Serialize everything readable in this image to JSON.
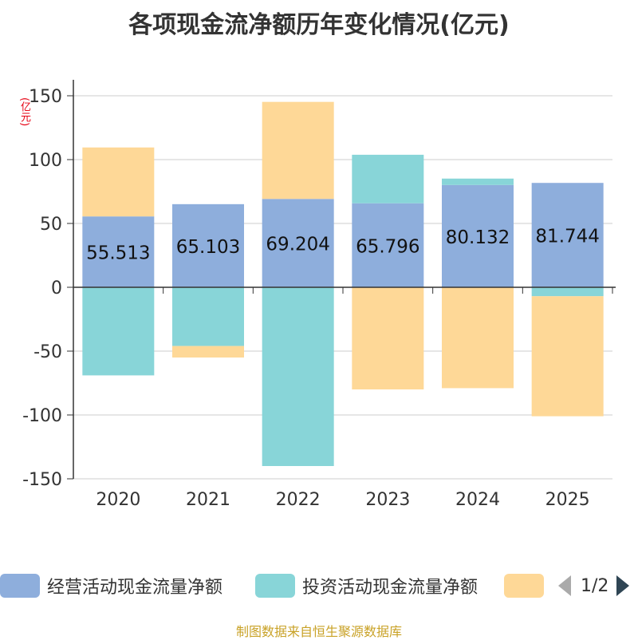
{
  "chart_data": {
    "type": "bar",
    "title": "各项现金流净额历年变化情况(亿元)",
    "unit": "(亿元)",
    "categories": [
      "2020",
      "2021",
      "2022",
      "2023",
      "2024",
      "2025"
    ],
    "ylim": [
      -150,
      150
    ],
    "yticks": [
      150,
      100,
      50,
      0,
      -50,
      -100,
      -150
    ],
    "grid": true,
    "legend_position": "bottom",
    "series": [
      {
        "name": "经营活动现金流量净额",
        "color": "#8eaedc",
        "values": [
          55.513,
          65.103,
          69.204,
          65.796,
          80.132,
          81.744
        ]
      },
      {
        "name": "投资活动现金流量净额",
        "color": "#88d5d8",
        "values": [
          -69,
          -46,
          -140,
          38,
          5,
          -7
        ]
      },
      {
        "name": "",
        "color": "#fed897",
        "values": [
          54,
          -9,
          76,
          -80,
          -79,
          -94
        ]
      }
    ],
    "data_labels": [
      "55.513",
      "65.103",
      "69.204",
      "65.796",
      "80.132",
      "81.744"
    ]
  },
  "legend": {
    "page_indicator": "1/2"
  },
  "source_note": "制图数据来自恒生聚源数据库"
}
